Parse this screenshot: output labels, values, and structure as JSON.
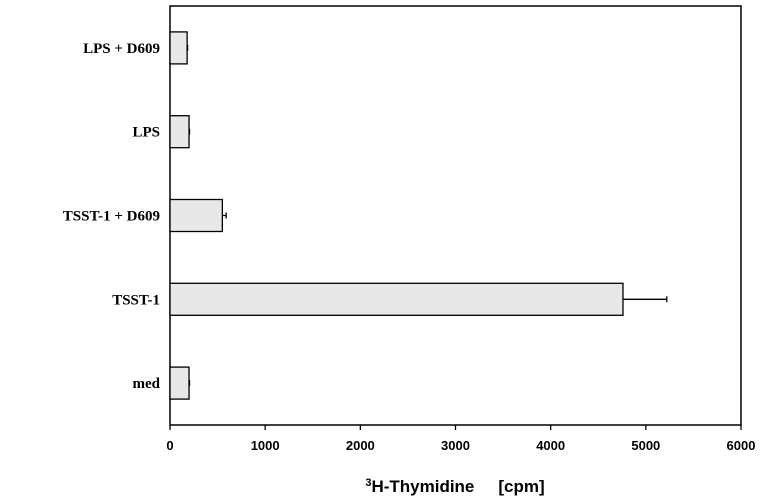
{
  "chart_data": {
    "type": "bar",
    "orientation": "horizontal",
    "categories": [
      "LPS + D609",
      "LPS",
      "TSST-1 + D609",
      "TSST-1",
      "med"
    ],
    "values": [
      180,
      200,
      550,
      4760,
      200
    ],
    "errors": [
      5,
      5,
      40,
      460,
      5
    ],
    "xlim": [
      0,
      6000
    ],
    "xticks": [
      0,
      1000,
      2000,
      3000,
      4000,
      5000,
      6000
    ],
    "xlabel": {
      "sup": "3",
      "main": "H-Thymidine",
      "unit": "[cpm]"
    },
    "bar_color": "#e8e8e8",
    "line_color": "#000000",
    "grid": false
  }
}
